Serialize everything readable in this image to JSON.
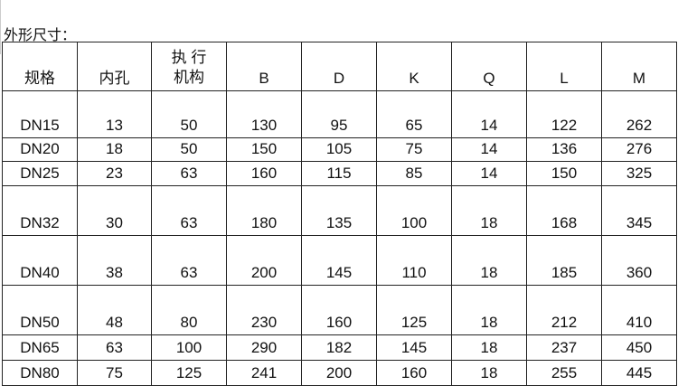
{
  "title": "外形尺寸：",
  "table": {
    "headers": [
      "规格",
      "内孔",
      "执 行机构",
      "B",
      "D",
      "K",
      "Q",
      "L",
      "M"
    ],
    "rows": [
      [
        "DN15",
        "13",
        "50",
        "130",
        "95",
        "65",
        "14",
        "122",
        "262"
      ],
      [
        "DN20",
        "18",
        "50",
        "150",
        "105",
        "75",
        "14",
        "136",
        "276"
      ],
      [
        "DN25",
        "23",
        "63",
        "160",
        "115",
        "85",
        "14",
        "150",
        "325"
      ],
      [
        "DN32",
        "30",
        "63",
        "180",
        "135",
        "100",
        "18",
        "168",
        "345"
      ],
      [
        "DN40",
        "38",
        "63",
        "200",
        "145",
        "110",
        "18",
        "185",
        "360"
      ],
      [
        "DN50",
        "48",
        "80",
        "230",
        "160",
        "125",
        "18",
        "212",
        "410"
      ],
      [
        "DN65",
        "63",
        "100",
        "290",
        "182",
        "145",
        "18",
        "237",
        "450"
      ],
      [
        "DN80",
        "75",
        "125",
        "241",
        "200",
        "160",
        "18",
        "255",
        "445"
      ]
    ]
  }
}
